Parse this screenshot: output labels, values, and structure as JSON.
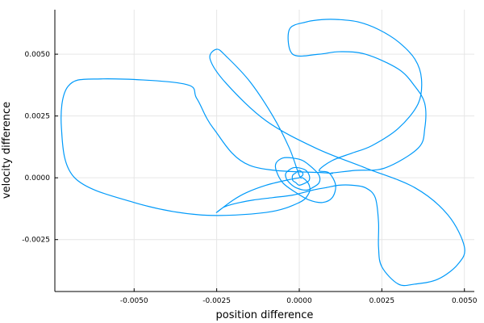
{
  "chart_data": {
    "type": "line",
    "title": "",
    "xlabel": "position difference",
    "ylabel": "velocity difference",
    "xlim": [
      -0.0074,
      0.0053
    ],
    "ylim": [
      -0.0046,
      0.0068
    ],
    "grid": true,
    "legend": "none",
    "x_ticks": [
      {
        "value": -0.005,
        "label": "-0.0050"
      },
      {
        "value": -0.0025,
        "label": "-0.0025"
      },
      {
        "value": 0.0,
        "label": "0.0000"
      },
      {
        "value": 0.0025,
        "label": "0.0025"
      },
      {
        "value": 0.005,
        "label": "0.0050"
      }
    ],
    "y_ticks": [
      {
        "value": -0.0025,
        "label": "-0.0025"
      },
      {
        "value": 0.0,
        "label": "0.0000"
      },
      {
        "value": 0.0025,
        "label": "0.0025"
      },
      {
        "value": 0.005,
        "label": "0.0050"
      }
    ],
    "series": [
      {
        "color": "#009AFA",
        "x": [
          0.0,
          0.0001,
          0.0001,
          0.0,
          -0.0001,
          -0.0002,
          -0.0002,
          -0.0001,
          0.0,
          0.0002,
          0.0003,
          0.0003,
          0.0002,
          0.0,
          -0.0002,
          -0.0004,
          -0.0004,
          -0.0003,
          -0.0001,
          0.0002,
          0.0004,
          0.0006,
          0.0006,
          0.0004,
          0.0001,
          -0.0002,
          -0.0005,
          -0.0007,
          -0.0007,
          -0.0005,
          -0.0001,
          0.0003,
          0.0007,
          0.001,
          0.0011,
          0.0009,
          0.0006,
          0.001,
          0.0016,
          0.0022,
          0.003,
          0.0036,
          0.0037,
          0.0035,
          0.003,
          0.0024,
          0.0018,
          0.0012,
          0.0007,
          0.0002,
          -0.0003,
          -0.0002,
          0.0006,
          0.0012,
          0.002,
          0.003,
          0.0035,
          0.0038,
          0.0038,
          0.0036,
          0.0026,
          0.0017,
          0.001,
          0.0008,
          -0.0015,
          -0.0026,
          -0.0031,
          -0.0035,
          -0.006,
          -0.007,
          -0.0072,
          -0.0068,
          -0.005,
          -0.003,
          -0.001,
          0.0,
          0.0003,
          0.0003,
          0.0002,
          0.0001,
          0.0,
          -0.0003,
          -0.0008,
          -0.0015,
          -0.0022,
          -0.0025,
          -0.0027,
          -0.0022,
          -0.001,
          0.0005,
          0.002,
          0.0035,
          0.0045,
          0.005,
          0.0048,
          0.0042,
          0.0035,
          0.003,
          0.0025,
          0.0024,
          0.0024,
          0.0023,
          0.002,
          0.0016,
          0.0012,
          0.0008,
          0.0004,
          -0.0002,
          -0.0008,
          -0.0014,
          -0.0018,
          -0.0021,
          -0.0023,
          -0.0025,
          -0.002,
          -0.0016,
          -0.001,
          -0.0004,
          0.0
        ],
        "y": [
          0.0,
          0.0001,
          0.0002,
          0.0003,
          0.0002,
          0.0001,
          -0.0001,
          -0.0002,
          -0.0003,
          -0.0002,
          -0.0001,
          0.0001,
          0.0003,
          0.0004,
          0.0004,
          0.0002,
          0.0,
          -0.0002,
          -0.0004,
          -0.0005,
          -0.0004,
          -0.0002,
          0.0001,
          0.0004,
          0.0007,
          0.0008,
          0.0008,
          0.0006,
          0.0003,
          -0.0002,
          -0.0006,
          -0.0009,
          -0.001,
          -0.0008,
          -0.0003,
          0.0002,
          0.0003,
          0.0007,
          0.001,
          0.0013,
          0.002,
          0.003,
          0.004,
          0.0048,
          0.0055,
          0.006,
          0.0063,
          0.0064,
          0.0064,
          0.0063,
          0.006,
          0.005,
          0.005,
          0.0051,
          0.005,
          0.0044,
          0.0037,
          0.003,
          0.002,
          0.0012,
          0.0004,
          0.0003,
          0.0002,
          0.0002,
          0.0005,
          0.002,
          0.0032,
          0.0038,
          0.004,
          0.0037,
          0.002,
          0.0,
          -0.001,
          -0.0015,
          -0.0014,
          -0.001,
          -0.0006,
          -0.0003,
          -0.0001,
          0.0,
          0.0001,
          0.0012,
          0.0025,
          0.0039,
          0.0049,
          0.0052,
          0.0048,
          0.0038,
          0.0023,
          0.0012,
          0.0004,
          -0.0004,
          -0.0015,
          -0.0028,
          -0.0035,
          -0.0041,
          -0.0043,
          -0.0043,
          -0.0036,
          -0.0028,
          -0.0018,
          -0.0008,
          -0.0004,
          -0.0003,
          -0.0003,
          -0.0004,
          -0.0005,
          -0.0007,
          -0.0008,
          -0.0009,
          -0.001,
          -0.0011,
          -0.0012,
          -0.0014,
          -0.0009,
          -0.0006,
          -0.0003,
          -0.0001,
          0.0
        ]
      }
    ]
  }
}
